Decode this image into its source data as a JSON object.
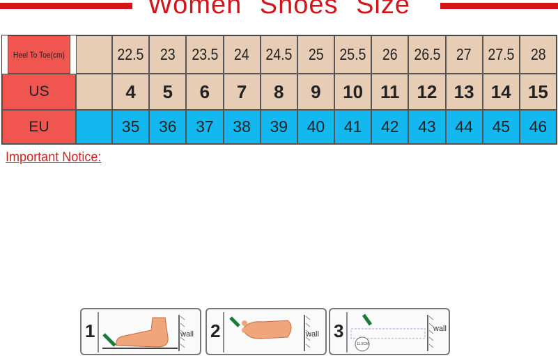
{
  "header": {
    "title": "Women Shoes Size"
  },
  "table": {
    "rows": [
      {
        "label": "Heel To Toe(cm)",
        "cells": [
          "22.5",
          "23",
          "23.5",
          "24",
          "24.5",
          "25",
          "25.5",
          "26",
          "26.5",
          "27",
          "27.5",
          "28"
        ]
      },
      {
        "label": "US",
        "cells": [
          "4",
          "5",
          "6",
          "7",
          "8",
          "9",
          "10",
          "11",
          "12",
          "13",
          "14",
          "15"
        ]
      },
      {
        "label": "EU",
        "cells": [
          "35",
          "36",
          "37",
          "38",
          "39",
          "40",
          "41",
          "42",
          "43",
          "44",
          "45",
          "46"
        ]
      }
    ]
  },
  "notice": {
    "title": "Important Notice:"
  },
  "steps": [
    {
      "number": "1",
      "wall": "wall"
    },
    {
      "number": "2",
      "wall": "wall"
    },
    {
      "number": "3",
      "wall": "wall",
      "measure": "11.5CM"
    }
  ]
}
